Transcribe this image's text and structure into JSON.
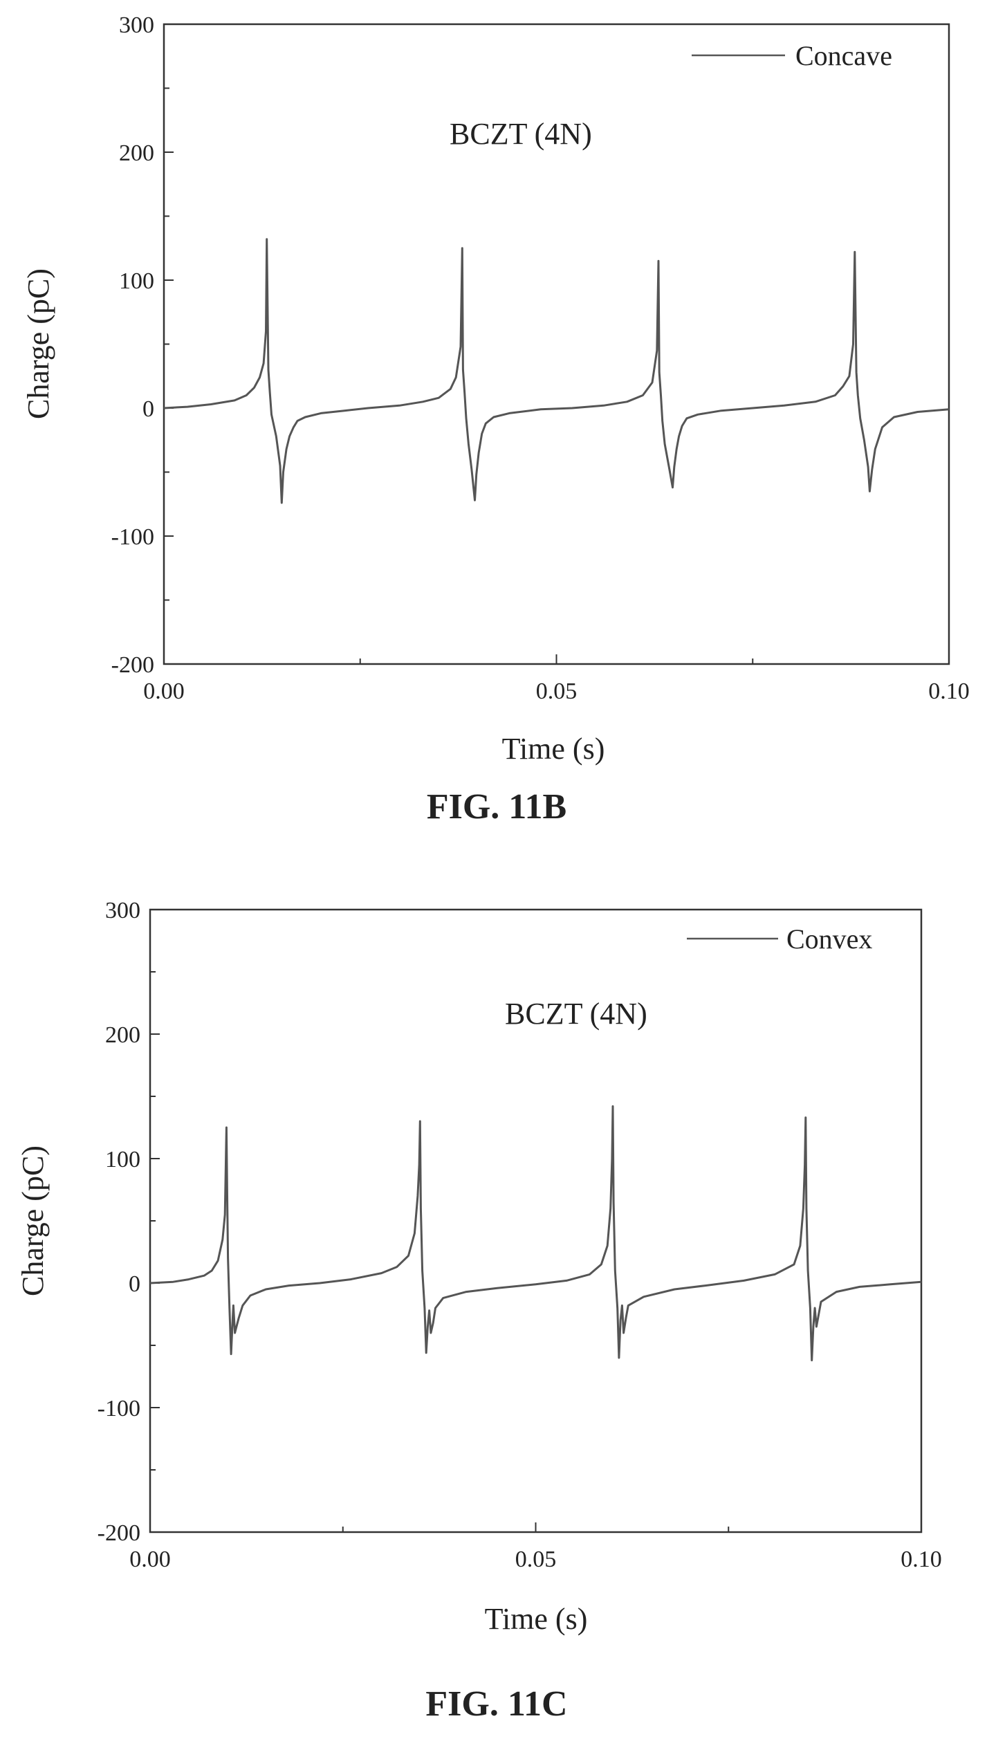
{
  "figures": [
    {
      "caption": "FIG. 11B"
    },
    {
      "caption": "FIG. 11C"
    }
  ],
  "chart_data": [
    {
      "type": "line",
      "title": "",
      "annotation": "BCZT (4N)",
      "xlabel": "Time (s)",
      "ylabel": "Charge (pC)",
      "xlim": [
        0.0,
        0.1
      ],
      "ylim": [
        -200,
        300
      ],
      "x_ticks": [
        0.0,
        0.05,
        0.1
      ],
      "x_tick_labels": [
        "0.00",
        "0.05",
        "0.10"
      ],
      "y_ticks": [
        -200,
        -100,
        0,
        100,
        200,
        300
      ],
      "y_tick_labels": [
        "-200",
        "-100",
        "0",
        "100",
        "200",
        "300"
      ],
      "grid": false,
      "legend_position": "top-right",
      "line_color": "#555555",
      "series": [
        {
          "name": "Concave",
          "x": [
            0.0,
            0.003,
            0.006,
            0.009,
            0.0105,
            0.0115,
            0.0122,
            0.0127,
            0.013,
            0.0131,
            0.0133,
            0.0135,
            0.0137,
            0.0143,
            0.0148,
            0.015,
            0.0152,
            0.0156,
            0.016,
            0.0165,
            0.017,
            0.018,
            0.02,
            0.023,
            0.026,
            0.03,
            0.033,
            0.035,
            0.0365,
            0.0372,
            0.0378,
            0.038,
            0.0381,
            0.0383,
            0.0385,
            0.0388,
            0.0392,
            0.0396,
            0.0398,
            0.0401,
            0.0405,
            0.041,
            0.042,
            0.044,
            0.048,
            0.052,
            0.056,
            0.059,
            0.061,
            0.0622,
            0.0628,
            0.063,
            0.0631,
            0.0633,
            0.0635,
            0.0638,
            0.0644,
            0.0648,
            0.065,
            0.0653,
            0.0656,
            0.066,
            0.0666,
            0.068,
            0.071,
            0.075,
            0.079,
            0.083,
            0.0855,
            0.0865,
            0.0873,
            0.0878,
            0.088,
            0.0882,
            0.0884,
            0.0887,
            0.0892,
            0.0897,
            0.0899,
            0.0902,
            0.0906,
            0.0915,
            0.093,
            0.096,
            0.1
          ],
          "values": [
            0,
            1,
            3,
            6,
            10,
            16,
            24,
            35,
            60,
            132,
            30,
            12,
            -5,
            -22,
            -45,
            -74,
            -50,
            -32,
            -22,
            -15,
            -10,
            -7,
            -4,
            -2,
            0,
            2,
            5,
            8,
            15,
            24,
            48,
            125,
            30,
            12,
            -8,
            -28,
            -48,
            -72,
            -52,
            -35,
            -20,
            -12,
            -7,
            -4,
            -1,
            0,
            2,
            5,
            10,
            20,
            45,
            115,
            28,
            10,
            -10,
            -28,
            -48,
            -62,
            -46,
            -32,
            -22,
            -14,
            -8,
            -5,
            -2,
            0,
            2,
            5,
            10,
            17,
            25,
            50,
            122,
            28,
            10,
            -8,
            -25,
            -46,
            -65,
            -48,
            -32,
            -15,
            -7,
            -3,
            -1
          ]
        }
      ]
    },
    {
      "type": "line",
      "title": "",
      "annotation": "BCZT (4N)",
      "xlabel": "Time (s)",
      "ylabel": "Charge (pC)",
      "xlim": [
        0.0,
        0.1
      ],
      "ylim": [
        -200,
        300
      ],
      "x_ticks": [
        0.0,
        0.05,
        0.1
      ],
      "x_tick_labels": [
        "0.00",
        "0.05",
        "0.10"
      ],
      "y_ticks": [
        -200,
        -100,
        0,
        100,
        200,
        300
      ],
      "y_tick_labels": [
        "-200",
        "-100",
        "0",
        "100",
        "200",
        "300"
      ],
      "grid": false,
      "legend_position": "top-right",
      "line_color": "#555555",
      "series": [
        {
          "name": "Convex",
          "x": [
            0.0,
            0.003,
            0.005,
            0.007,
            0.008,
            0.0088,
            0.0094,
            0.0097,
            0.0098,
            0.0099,
            0.01,
            0.0101,
            0.0103,
            0.0105,
            0.0107,
            0.0108,
            0.011,
            0.0112,
            0.0115,
            0.012,
            0.013,
            0.015,
            0.018,
            0.022,
            0.026,
            0.03,
            0.032,
            0.0335,
            0.0343,
            0.0347,
            0.0349,
            0.035,
            0.0351,
            0.0353,
            0.0356,
            0.0358,
            0.036,
            0.0362,
            0.0364,
            0.0367,
            0.037,
            0.038,
            0.041,
            0.045,
            0.05,
            0.054,
            0.057,
            0.0585,
            0.0593,
            0.0597,
            0.0599,
            0.06,
            0.0601,
            0.0603,
            0.0606,
            0.0608,
            0.061,
            0.0612,
            0.0614,
            0.0617,
            0.062,
            0.064,
            0.068,
            0.072,
            0.077,
            0.081,
            0.0835,
            0.0843,
            0.0847,
            0.0849,
            0.085,
            0.0851,
            0.0853,
            0.0856,
            0.0858,
            0.086,
            0.0862,
            0.0864,
            0.0867,
            0.087,
            0.089,
            0.092,
            0.096,
            0.1
          ],
          "values": [
            0,
            1,
            3,
            6,
            10,
            18,
            35,
            55,
            90,
            125,
            70,
            20,
            -20,
            -57,
            -30,
            -18,
            -40,
            -35,
            -28,
            -18,
            -10,
            -5,
            -2,
            0,
            3,
            8,
            13,
            22,
            40,
            70,
            95,
            130,
            60,
            10,
            -20,
            -56,
            -35,
            -22,
            -40,
            -32,
            -20,
            -12,
            -7,
            -4,
            -1,
            2,
            7,
            15,
            30,
            60,
            100,
            142,
            65,
            10,
            -20,
            -60,
            -30,
            -18,
            -40,
            -28,
            -18,
            -11,
            -5,
            -2,
            2,
            7,
            15,
            30,
            60,
            95,
            133,
            60,
            10,
            -20,
            -62,
            -35,
            -20,
            -35,
            -25,
            -15,
            -7,
            -3,
            -1,
            1
          ]
        }
      ]
    }
  ]
}
